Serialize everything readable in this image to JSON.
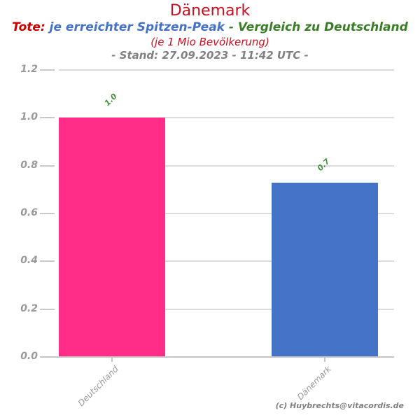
{
  "header": {
    "title": "Dänemark",
    "subtitle": {
      "tote": "Tote:",
      "peak": "je erreichter Spitzen-Peak",
      "compare": "- Vergleich zu Deutschland"
    },
    "per_capita_note": "(je 1 Mio Bevölkerung)",
    "stand_line": "- Stand: 27.09.2023 - 11:42 UTC -"
  },
  "chart_data": {
    "type": "bar",
    "categories": [
      "Deutschland",
      "Dänemark"
    ],
    "values": [
      1.0,
      0.73
    ],
    "bar_labels": [
      "1.0",
      "0.7"
    ],
    "bar_colors": [
      "#ff2d87",
      "#4573c8"
    ],
    "title": "Dänemark",
    "xlabel": "",
    "ylabel": "",
    "ylim": [
      0,
      1.2
    ],
    "yticks": [
      "0.0",
      "0.2",
      "0.4",
      "0.6",
      "0.8",
      "1.0",
      "1.2"
    ],
    "grid": true,
    "legend": "none"
  },
  "footer": {
    "credit": "(c) Huybrechts@vitacordis.de"
  },
  "colors": {
    "title_red": "#c41122",
    "tote_red": "#cc0000",
    "subtitle_blue": "#4472c4",
    "subtitle_green": "#3a7d27",
    "bar_label_green": "#44913c",
    "stand_gray": "#808080",
    "axis_label_gray": "#999999",
    "bar_pink": "#ff2d87",
    "bar_blue": "#4573c8",
    "gridline_gray": "#dcdcdc"
  }
}
